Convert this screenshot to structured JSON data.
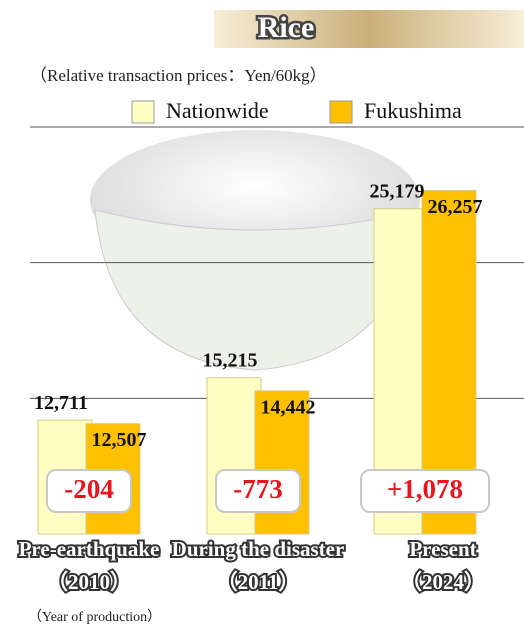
{
  "chart_data": {
    "type": "bar",
    "title": "Rice",
    "subtitle": "（Relative transaction prices：Yen/60kg）",
    "categories": [
      "Pre-earthquake",
      "During the disaster",
      "Present"
    ],
    "years": [
      "（2010）",
      "（2011）",
      "（2024）"
    ],
    "note": "（Year of production）",
    "series": [
      {
        "name": "Nationwide",
        "color": "#ffffc4",
        "values": [
          12711,
          15215,
          25179
        ],
        "value_labels": [
          "12,711",
          "15,215",
          "25,179"
        ]
      },
      {
        "name": "Fukushima",
        "color": "#ffc000",
        "values": [
          12507,
          14442,
          26257
        ],
        "value_labels": [
          "12,507",
          "14,442",
          "26,257"
        ]
      }
    ],
    "differences": {
      "values": [
        -204,
        -773,
        1078
      ],
      "value_labels": [
        "-204",
        "-773",
        "+1,078"
      ],
      "color": "#e8141e"
    },
    "ylim": [
      6000,
      30000
    ],
    "gridlines": [
      14000,
      22000,
      30000
    ]
  }
}
